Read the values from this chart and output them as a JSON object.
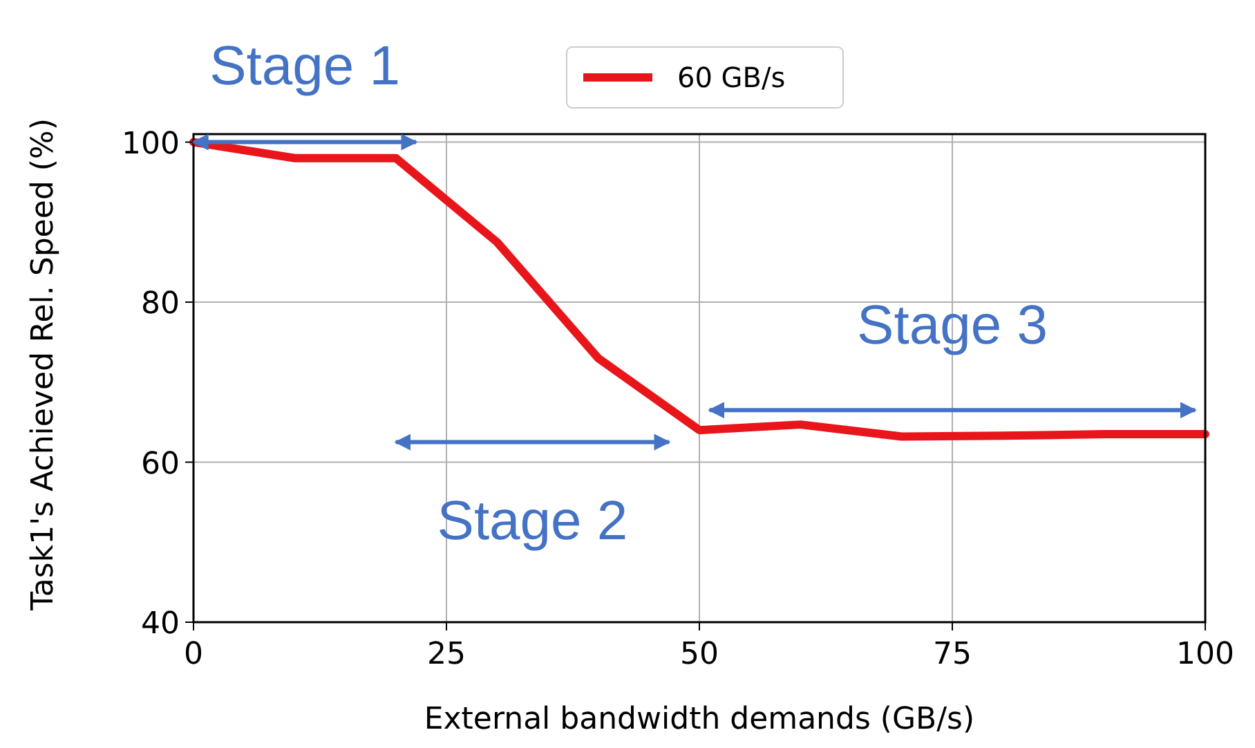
{
  "chart_data": {
    "type": "line",
    "xlabel": "External bandwidth demands (GB/s)",
    "ylabel": "Task1's Achieved Rel. Speed (%)",
    "x": [
      0,
      10,
      20,
      30,
      40,
      50,
      60,
      70,
      80,
      90,
      100
    ],
    "series": [
      {
        "name": "60 GB/s",
        "color": "#e8151b",
        "values": [
          100,
          98,
          98,
          87.5,
          73,
          64,
          64.7,
          63.2,
          63.3,
          63.5,
          63.5
        ]
      }
    ],
    "xlim": [
      0,
      100
    ],
    "xticks": [
      0,
      25,
      50,
      75,
      100
    ],
    "ylim": [
      40,
      101
    ],
    "yticks": [
      40,
      60,
      80,
      100
    ],
    "grid": true,
    "legend": "top",
    "marker": "none",
    "line_style": "solid",
    "annotations": [
      "Stage 1",
      "Stage 2",
      "Stage 3"
    ]
  }
}
